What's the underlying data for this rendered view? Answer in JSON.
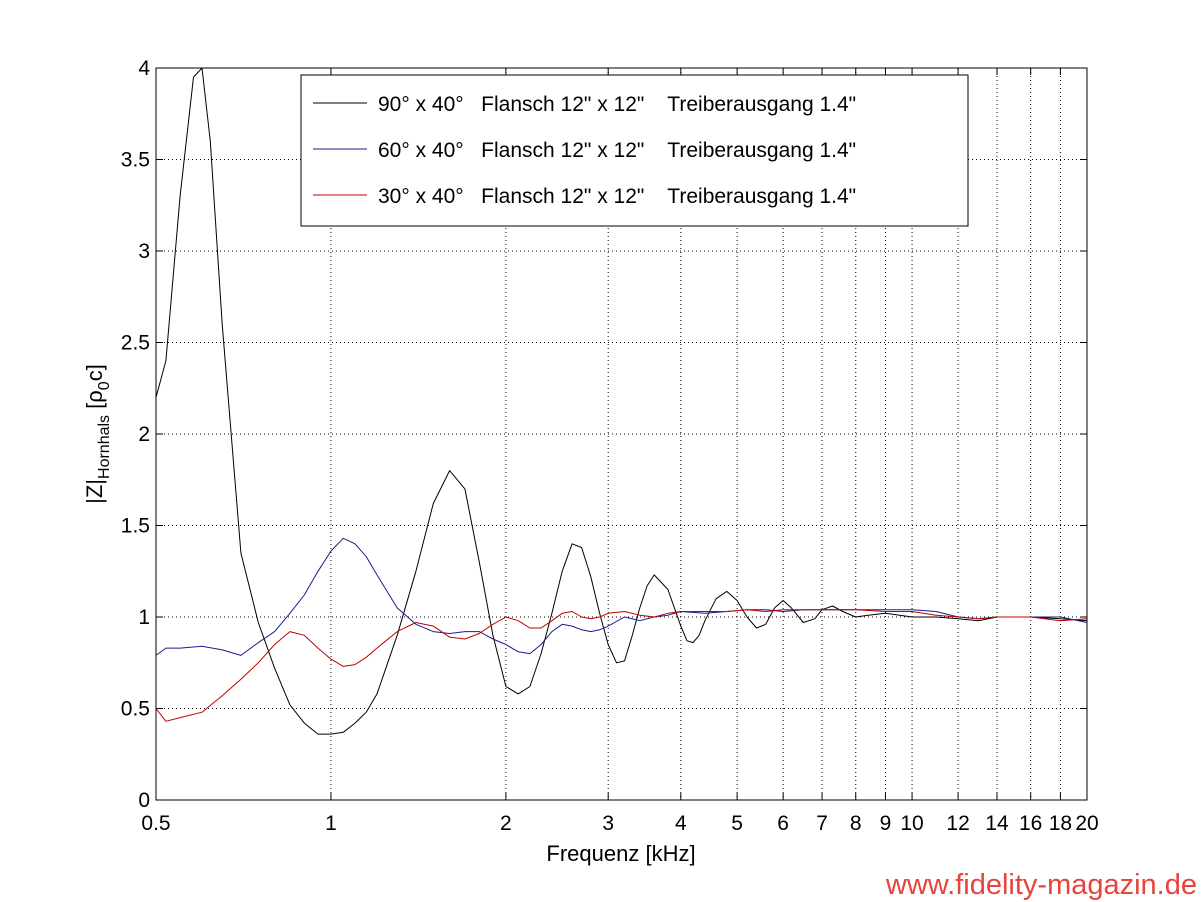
{
  "chart_data": {
    "type": "line",
    "xscale": "log",
    "xlim": [
      0.5,
      20
    ],
    "ylim": [
      0,
      4
    ],
    "grid": true,
    "xlabel": "Frequenz [kHz]",
    "ylabel_main": "|Z|",
    "ylabel_sub": "Hornhals",
    "ylabel_unit_open": " [ρ",
    "ylabel_unit_sub": "0",
    "ylabel_unit_close": "c]",
    "xticks": [
      0.5,
      1,
      2,
      3,
      4,
      5,
      6,
      7,
      8,
      9,
      10,
      12,
      14,
      16,
      18,
      20
    ],
    "xtick_labels": [
      "0.5",
      "1",
      "2",
      "3",
      "4",
      "5",
      "6",
      "7",
      "8",
      "9",
      "10",
      "12",
      "14",
      "16",
      "18",
      "20"
    ],
    "yticks": [
      0,
      0.5,
      1,
      1.5,
      2,
      2.5,
      3,
      3.5,
      4
    ],
    "ytick_labels": [
      "0",
      "0.5",
      "1",
      "1.5",
      "2",
      "2.5",
      "3",
      "3.5",
      "4"
    ],
    "legend_position": "top-right",
    "series": [
      {
        "name": "90° x 40°   Flansch 12\" x 12\"    Treiberausgang 1.4\"",
        "color": "#000000",
        "x": [
          0.5,
          0.52,
          0.55,
          0.58,
          0.6,
          0.62,
          0.65,
          0.7,
          0.75,
          0.8,
          0.85,
          0.9,
          0.95,
          1.0,
          1.05,
          1.1,
          1.15,
          1.2,
          1.3,
          1.4,
          1.5,
          1.6,
          1.7,
          1.8,
          1.9,
          2.0,
          2.1,
          2.2,
          2.3,
          2.4,
          2.5,
          2.6,
          2.7,
          2.8,
          2.9,
          3.0,
          3.1,
          3.2,
          3.3,
          3.4,
          3.5,
          3.6,
          3.8,
          3.9,
          4.0,
          4.1,
          4.2,
          4.3,
          4.4,
          4.6,
          4.8,
          5.0,
          5.2,
          5.4,
          5.6,
          5.8,
          6.0,
          6.2,
          6.5,
          6.8,
          7.0,
          7.3,
          7.6,
          8.0,
          8.4,
          9.0,
          10.0,
          11.0,
          12.0,
          13.0,
          14.0,
          16.0,
          18.0,
          20.0
        ],
        "y": [
          2.2,
          2.4,
          3.3,
          3.95,
          4.0,
          3.6,
          2.6,
          1.35,
          0.97,
          0.72,
          0.52,
          0.42,
          0.36,
          0.36,
          0.37,
          0.42,
          0.48,
          0.58,
          0.9,
          1.25,
          1.62,
          1.8,
          1.7,
          1.3,
          0.9,
          0.62,
          0.58,
          0.62,
          0.8,
          1.02,
          1.25,
          1.4,
          1.38,
          1.22,
          1.02,
          0.85,
          0.75,
          0.76,
          0.9,
          1.05,
          1.17,
          1.23,
          1.15,
          1.05,
          0.95,
          0.87,
          0.86,
          0.9,
          0.98,
          1.1,
          1.14,
          1.09,
          1.0,
          0.94,
          0.96,
          1.05,
          1.09,
          1.05,
          0.97,
          0.99,
          1.04,
          1.06,
          1.03,
          1.0,
          1.01,
          1.02,
          1.0,
          1.0,
          0.99,
          0.98,
          1.0,
          1.0,
          0.99,
          0.98
        ]
      },
      {
        "name": "60° x 40°   Flansch 12\" x 12\"    Treiberausgang 1.4\"",
        "color": "#1c1c8c",
        "x": [
          0.5,
          0.52,
          0.55,
          0.6,
          0.65,
          0.7,
          0.75,
          0.8,
          0.85,
          0.9,
          0.95,
          1.0,
          1.05,
          1.1,
          1.15,
          1.2,
          1.3,
          1.4,
          1.5,
          1.6,
          1.7,
          1.8,
          1.9,
          2.0,
          2.1,
          2.2,
          2.3,
          2.4,
          2.5,
          2.6,
          2.7,
          2.8,
          2.9,
          3.0,
          3.2,
          3.4,
          3.6,
          3.8,
          4.0,
          4.4,
          4.8,
          5.2,
          5.6,
          6.0,
          6.5,
          7.0,
          7.5,
          8.0,
          9.0,
          10.0,
          11.0,
          12.0,
          13.0,
          14.0,
          16.0,
          18.0,
          20.0
        ],
        "y": [
          0.79,
          0.83,
          0.83,
          0.84,
          0.82,
          0.79,
          0.86,
          0.92,
          1.02,
          1.12,
          1.25,
          1.36,
          1.43,
          1.4,
          1.33,
          1.23,
          1.05,
          0.96,
          0.92,
          0.91,
          0.92,
          0.92,
          0.88,
          0.85,
          0.81,
          0.8,
          0.85,
          0.92,
          0.96,
          0.95,
          0.93,
          0.92,
          0.93,
          0.95,
          1.0,
          0.98,
          1.0,
          1.01,
          1.03,
          1.02,
          1.03,
          1.04,
          1.04,
          1.03,
          1.04,
          1.04,
          1.04,
          1.04,
          1.04,
          1.04,
          1.03,
          1.0,
          0.99,
          1.0,
          1.0,
          1.0,
          0.97
        ]
      },
      {
        "name": "30° x 40°   Flansch 12\" x 12\"    Treiberausgang 1.4\"",
        "color": "#c00000",
        "x": [
          0.5,
          0.52,
          0.55,
          0.6,
          0.65,
          0.7,
          0.75,
          0.8,
          0.85,
          0.9,
          0.95,
          1.0,
          1.05,
          1.1,
          1.15,
          1.2,
          1.3,
          1.4,
          1.5,
          1.6,
          1.7,
          1.8,
          1.9,
          2.0,
          2.1,
          2.2,
          2.3,
          2.4,
          2.5,
          2.6,
          2.7,
          2.8,
          2.9,
          3.0,
          3.2,
          3.4,
          3.6,
          3.8,
          4.0,
          4.4,
          4.8,
          5.2,
          5.6,
          6.0,
          6.5,
          7.0,
          7.5,
          8.0,
          9.0,
          10.0,
          11.0,
          12.0,
          13.0,
          14.0,
          16.0,
          18.0,
          20.0
        ],
        "y": [
          0.5,
          0.43,
          0.45,
          0.48,
          0.57,
          0.66,
          0.75,
          0.85,
          0.92,
          0.9,
          0.83,
          0.77,
          0.73,
          0.74,
          0.78,
          0.83,
          0.92,
          0.97,
          0.95,
          0.89,
          0.88,
          0.91,
          0.96,
          1.0,
          0.98,
          0.94,
          0.94,
          0.98,
          1.02,
          1.03,
          1.0,
          0.99,
          1.0,
          1.02,
          1.03,
          1.01,
          1.0,
          1.02,
          1.03,
          1.03,
          1.03,
          1.04,
          1.03,
          1.04,
          1.04,
          1.04,
          1.04,
          1.04,
          1.03,
          1.03,
          1.01,
          1.0,
          0.99,
          1.0,
          1.0,
          0.98,
          0.99
        ]
      }
    ]
  },
  "watermark": {
    "text": "www.fidelity-magazin.de",
    "color": "#e8433d"
  }
}
